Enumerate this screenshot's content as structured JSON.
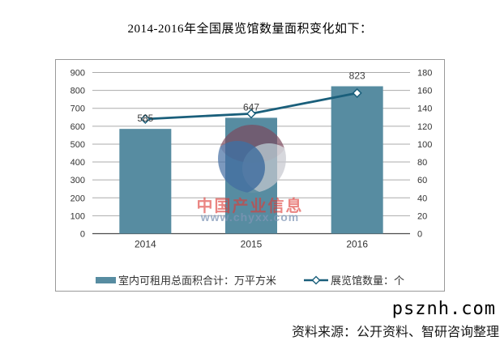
{
  "chart_data": {
    "type": "combo-bar-line",
    "title": "2014-2016年全国展览馆数量面积变化如下：",
    "categories": [
      "2014",
      "2015",
      "2016"
    ],
    "series": [
      {
        "name": "室内可租用总面积合计：万平方米",
        "type": "bar",
        "axis": "left",
        "values": [
          585,
          647,
          823
        ],
        "data_labels": [
          "585",
          "647",
          "823"
        ],
        "color": "#578CA1"
      },
      {
        "name": "展览馆数量：个",
        "type": "line",
        "axis": "right",
        "values": [
          128,
          134,
          157
        ],
        "color": "#1A5F7B",
        "marker": "diamond",
        "marker_fill": "#FFFFFF"
      }
    ],
    "axes": {
      "left": {
        "min": 0,
        "max": 900,
        "step": 100,
        "ticks": [
          "0",
          "100",
          "200",
          "300",
          "400",
          "500",
          "600",
          "700",
          "800",
          "900"
        ]
      },
      "right": {
        "min": 0,
        "max": 180,
        "step": 20,
        "ticks": [
          "0",
          "20",
          "40",
          "60",
          "80",
          "100",
          "120",
          "140",
          "160",
          "180"
        ]
      }
    },
    "grid": true,
    "grid_color": "#ABABAB",
    "axis_line_color": "#4D4D4D",
    "tick_label_color": "#333333",
    "data_label_color": "#3D3D3D",
    "legend_position": "bottom"
  },
  "watermark": {
    "brand": "中国产业信息",
    "brand_color": "#DE3B36",
    "url": "www.chyxx.com",
    "url_color": "#7F96B6",
    "logo_colors": {
      "top": "#7A4458",
      "right": "#C9CBD1",
      "left": "#3E68A0"
    }
  },
  "footer": {
    "domain_watermark": "psznh.com",
    "source_note": "资料来源：公开资料、智研咨询整理"
  }
}
